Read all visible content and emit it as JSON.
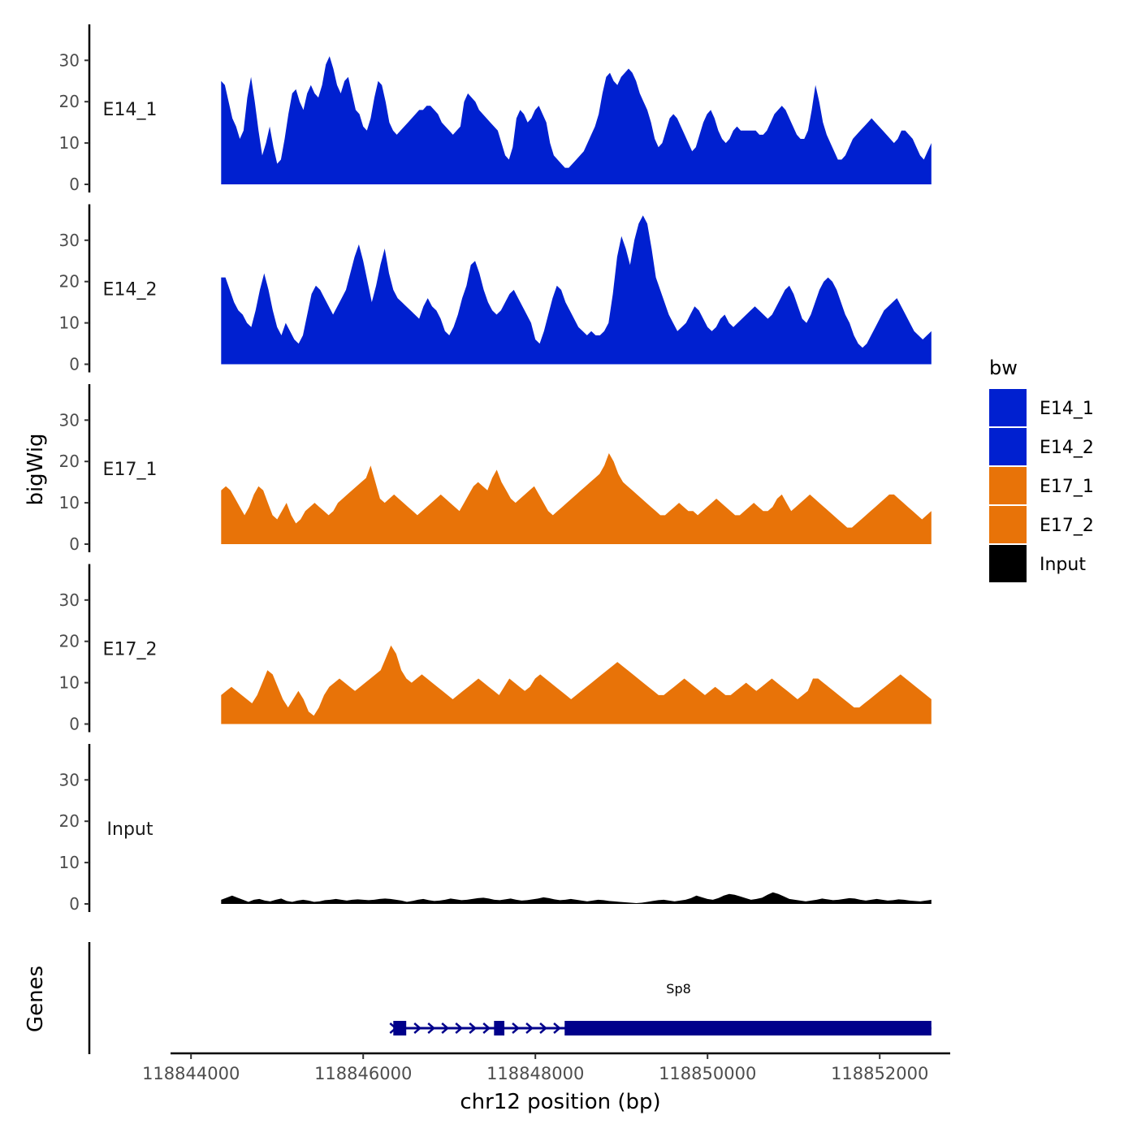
{
  "chart_data": {
    "type": "area",
    "ylabel": "bigWig",
    "xlabel": "chr12 position (bp)",
    "genes_label": "Genes",
    "x_range": [
      118844350,
      118852600
    ],
    "xlim": [
      118843800,
      118852800
    ],
    "x_ticks": [
      118844000,
      118846000,
      118848000,
      118850000,
      118852000
    ],
    "ylim": [
      0,
      38
    ],
    "y_ticks": [
      0,
      10,
      20,
      30
    ],
    "legend": {
      "title": "bw",
      "position": "right",
      "items": [
        {
          "label": "E14_1",
          "color": "#0020d0"
        },
        {
          "label": "E14_2",
          "color": "#0020d0"
        },
        {
          "label": "E17_1",
          "color": "#e87308"
        },
        {
          "label": "E17_2",
          "color": "#e87308"
        },
        {
          "label": "Input",
          "color": "#000000"
        }
      ]
    },
    "tracks": [
      {
        "name": "E14_1",
        "color": "#0020d0",
        "values": [
          25,
          24,
          20,
          16,
          14,
          11,
          13,
          21,
          26,
          20,
          13,
          7,
          10,
          14,
          9,
          5,
          6,
          11,
          17,
          22,
          23,
          20,
          18,
          22,
          24,
          22,
          21,
          24,
          29,
          31,
          28,
          24,
          22,
          25,
          26,
          22,
          18,
          17,
          14,
          13,
          16,
          21,
          25,
          24,
          20,
          15,
          13,
          12,
          13,
          14,
          15,
          16,
          17,
          18,
          18,
          19,
          19,
          18,
          17,
          15,
          14,
          13,
          12,
          13,
          14,
          20,
          22,
          21,
          20,
          18,
          17,
          16,
          15,
          14,
          13,
          10,
          7,
          6,
          9,
          16,
          18,
          17,
          15,
          16,
          18,
          19,
          17,
          15,
          10,
          7,
          6,
          5,
          4,
          4,
          5,
          6,
          7,
          8,
          10,
          12,
          14,
          17,
          22,
          26,
          27,
          25,
          24,
          26,
          27,
          28,
          27,
          25,
          22,
          20,
          18,
          15,
          11,
          9,
          10,
          13,
          16,
          17,
          16,
          14,
          12,
          10,
          8,
          9,
          12,
          15,
          17,
          18,
          16,
          13,
          11,
          10,
          11,
          13,
          14,
          13,
          13,
          13,
          13,
          13,
          12,
          12,
          13,
          15,
          17,
          18,
          19,
          18,
          16,
          14,
          12,
          11,
          11,
          13,
          18,
          24,
          20,
          15,
          12,
          10,
          8,
          6,
          6,
          7,
          9,
          11,
          12,
          13,
          14,
          15,
          16,
          15,
          14,
          13,
          12,
          11,
          10,
          11,
          13,
          13,
          12,
          11,
          9,
          7,
          6,
          8,
          10
        ]
      },
      {
        "name": "E14_2",
        "color": "#0020d0",
        "values": [
          21,
          21,
          18,
          15,
          13,
          12,
          10,
          9,
          13,
          18,
          22,
          18,
          13,
          9,
          7,
          10,
          8,
          6,
          5,
          7,
          12,
          17,
          19,
          18,
          16,
          14,
          12,
          14,
          16,
          18,
          22,
          26,
          29,
          25,
          20,
          15,
          19,
          24,
          28,
          22,
          18,
          16,
          15,
          14,
          13,
          12,
          11,
          14,
          16,
          14,
          13,
          11,
          8,
          7,
          9,
          12,
          16,
          19,
          24,
          25,
          22,
          18,
          15,
          13,
          12,
          13,
          15,
          17,
          18,
          16,
          14,
          12,
          10,
          6,
          5,
          8,
          12,
          16,
          19,
          18,
          15,
          13,
          11,
          9,
          8,
          7,
          8,
          7,
          7,
          8,
          10,
          17,
          26,
          31,
          28,
          24,
          30,
          34,
          36,
          34,
          28,
          21,
          18,
          15,
          12,
          10,
          8,
          9,
          10,
          12,
          14,
          13,
          11,
          9,
          8,
          9,
          11,
          12,
          10,
          9,
          10,
          11,
          12,
          13,
          14,
          13,
          12,
          11,
          12,
          14,
          16,
          18,
          19,
          17,
          14,
          11,
          10,
          12,
          15,
          18,
          20,
          21,
          20,
          18,
          15,
          12,
          10,
          7,
          5,
          4,
          5,
          7,
          9,
          11,
          13,
          14,
          15,
          16,
          14,
          12,
          10,
          8,
          7,
          6,
          7,
          8
        ]
      },
      {
        "name": "E17_1",
        "color": "#e87308",
        "values": [
          13,
          14,
          13,
          11,
          9,
          7,
          9,
          12,
          14,
          13,
          10,
          7,
          6,
          8,
          10,
          7,
          5,
          6,
          8,
          9,
          10,
          9,
          8,
          7,
          8,
          10,
          11,
          12,
          13,
          14,
          15,
          16,
          19,
          15,
          11,
          10,
          11,
          12,
          11,
          10,
          9,
          8,
          7,
          8,
          9,
          10,
          11,
          12,
          11,
          10,
          9,
          8,
          10,
          12,
          14,
          15,
          14,
          13,
          16,
          18,
          15,
          13,
          11,
          10,
          11,
          12,
          13,
          14,
          12,
          10,
          8,
          7,
          8,
          9,
          10,
          11,
          12,
          13,
          14,
          15,
          16,
          17,
          19,
          22,
          20,
          17,
          15,
          14,
          13,
          12,
          11,
          10,
          9,
          8,
          7,
          7,
          8,
          9,
          10,
          9,
          8,
          8,
          7,
          8,
          9,
          10,
          11,
          10,
          9,
          8,
          7,
          7,
          8,
          9,
          10,
          9,
          8,
          8,
          9,
          11,
          12,
          10,
          8,
          9,
          10,
          11,
          12,
          11,
          10,
          9,
          8,
          7,
          6,
          5,
          4,
          4,
          5,
          6,
          7,
          8,
          9,
          10,
          11,
          12,
          12,
          11,
          10,
          9,
          8,
          7,
          6,
          7,
          8
        ]
      },
      {
        "name": "E17_2",
        "color": "#e87308",
        "values": [
          7,
          8,
          9,
          8,
          7,
          6,
          5,
          7,
          10,
          13,
          12,
          9,
          6,
          4,
          6,
          8,
          6,
          3,
          2,
          4,
          7,
          9,
          10,
          11,
          10,
          9,
          8,
          9,
          10,
          11,
          12,
          13,
          16,
          19,
          17,
          13,
          11,
          10,
          11,
          12,
          11,
          10,
          9,
          8,
          7,
          6,
          7,
          8,
          9,
          10,
          11,
          10,
          9,
          8,
          7,
          9,
          11,
          10,
          9,
          8,
          9,
          11,
          12,
          11,
          10,
          9,
          8,
          7,
          6,
          7,
          8,
          9,
          10,
          11,
          12,
          13,
          14,
          15,
          14,
          13,
          12,
          11,
          10,
          9,
          8,
          7,
          7,
          8,
          9,
          10,
          11,
          10,
          9,
          8,
          7,
          8,
          9,
          8,
          7,
          7,
          8,
          9,
          10,
          9,
          8,
          9,
          10,
          11,
          10,
          9,
          8,
          7,
          6,
          7,
          8,
          11,
          11,
          10,
          9,
          8,
          7,
          6,
          5,
          4,
          4,
          5,
          6,
          7,
          8,
          9,
          10,
          11,
          12,
          11,
          10,
          9,
          8,
          7,
          6
        ]
      },
      {
        "name": "Input",
        "color": "#000000",
        "values": [
          1.0,
          1.5,
          2.0,
          1.5,
          1.0,
          0.5,
          1.0,
          1.2,
          0.8,
          0.6,
          1.0,
          1.3,
          0.7,
          0.5,
          0.8,
          1.0,
          0.8,
          0.5,
          0.6,
          0.9,
          1.0,
          1.2,
          1.0,
          0.8,
          1.0,
          1.1,
          1.0,
          0.9,
          1.0,
          1.2,
          1.3,
          1.2,
          1.0,
          0.8,
          0.5,
          0.7,
          1.0,
          1.2,
          0.9,
          0.7,
          0.8,
          1.0,
          1.3,
          1.1,
          0.9,
          1.0,
          1.2,
          1.4,
          1.5,
          1.3,
          1.0,
          0.9,
          1.1,
          1.3,
          1.0,
          0.8,
          0.9,
          1.1,
          1.3,
          1.6,
          1.4,
          1.1,
          0.9,
          1.0,
          1.2,
          1.0,
          0.8,
          0.6,
          0.8,
          1.0,
          0.9,
          0.7,
          0.6,
          0.5,
          0.4,
          0.3,
          0.2,
          0.3,
          0.5,
          0.7,
          0.9,
          1.0,
          0.8,
          0.6,
          0.8,
          1.0,
          1.4,
          2.0,
          1.6,
          1.2,
          1.0,
          1.4,
          2.0,
          2.4,
          2.2,
          1.8,
          1.4,
          1.0,
          1.2,
          1.5,
          2.2,
          2.8,
          2.4,
          1.8,
          1.2,
          1.0,
          0.8,
          0.6,
          0.8,
          1.0,
          1.3,
          1.1,
          0.9,
          1.0,
          1.2,
          1.4,
          1.3,
          1.0,
          0.8,
          1.0,
          1.2,
          1.0,
          0.8,
          0.9,
          1.1,
          1.0,
          0.8,
          0.7,
          0.6,
          0.8,
          1.0
        ]
      }
    ],
    "gene": {
      "name": "Sp8",
      "color": "#00008b",
      "start": 118846350,
      "end": 118852600,
      "strand": "+",
      "exons": [
        [
          118846350,
          118846500
        ],
        [
          118847520,
          118847640
        ],
        [
          118848340,
          118852600
        ]
      ]
    }
  }
}
